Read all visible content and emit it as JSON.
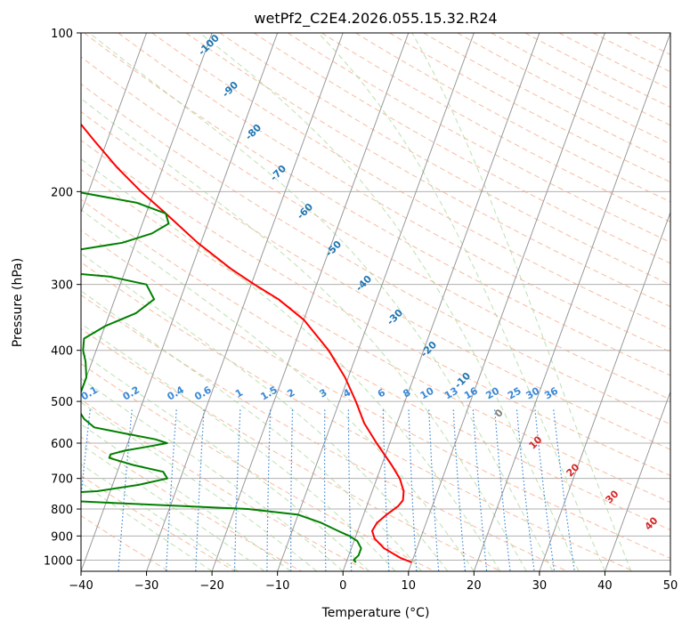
{
  "chart_data": {
    "type": "line",
    "subtype": "skew-t log-p diagram",
    "title": "wetPf2_C2E4.2026.055.15.32.R24",
    "xlabel": "Temperature (°C)",
    "ylabel": "Pressure (hPa)",
    "xlim": [
      -40,
      50
    ],
    "ylim": [
      1050,
      100
    ],
    "y_scale": "log",
    "grid": true,
    "x_ticks": [
      -40,
      -30,
      -20,
      -10,
      0,
      10,
      20,
      30,
      40,
      50
    ],
    "y_ticks": [
      100,
      200,
      300,
      400,
      500,
      600,
      700,
      800,
      900,
      1000
    ],
    "series": [
      {
        "color": "#ff0000",
        "pressure": [
          1010,
          990,
          950,
          910,
          880,
          850,
          820,
          790,
          770,
          740,
          700,
          660,
          600,
          550,
          500,
          450,
          400,
          350,
          320,
          300,
          280,
          250,
          220,
          200,
          180,
          160,
          140,
          130,
          120,
          110,
          100
        ],
        "temperature": [
          10.0,
          8.0,
          5.0,
          3.0,
          2.2,
          2.5,
          3.5,
          4.8,
          5.2,
          4.8,
          3.5,
          1.5,
          -2.0,
          -5.0,
          -7.5,
          -10.5,
          -14.5,
          -20.0,
          -25.0,
          -29.5,
          -34.0,
          -40.5,
          -47.0,
          -52.0,
          -57.0,
          -62.0,
          -67.5,
          -70.5,
          -73.5,
          -76.0,
          -79.5
        ]
      },
      {
        "color": "#008000",
        "pressure": [
          1010,
          1000,
          980,
          950,
          920,
          900,
          880,
          850,
          820,
          800,
          790,
          780,
          770,
          760,
          750,
          740,
          720,
          700,
          680,
          660,
          640,
          630,
          620,
          610,
          600,
          590,
          575,
          560,
          540,
          510,
          500,
          480,
          450,
          420,
          400,
          380,
          360,
          340,
          320,
          300,
          290,
          285,
          280,
          276,
          273,
          270,
          265,
          260,
          250,
          240,
          230,
          220,
          210,
          200,
          195,
          192,
          188,
          180,
          170,
          160,
          150,
          140,
          130,
          120,
          110,
          100
        ],
        "dewpoint": [
          1.5,
          1.0,
          1.5,
          1.5,
          0.5,
          -1.0,
          -3.0,
          -6.0,
          -10.0,
          -18.0,
          -28.0,
          -38.0,
          -48.0,
          -52.0,
          -50.0,
          -42.0,
          -36.0,
          -32.0,
          -33.0,
          -38.0,
          -42.0,
          -42.0,
          -40.0,
          -37.0,
          -34.0,
          -36.0,
          -41.0,
          -46.0,
          -48.0,
          -50.0,
          -51.0,
          -50.0,
          -50.0,
          -51.0,
          -52.0,
          -52.5,
          -50.0,
          -46.0,
          -44.0,
          -46.0,
          -52.0,
          -59.0,
          -67.0,
          -73.0,
          -74.0,
          -73.0,
          -67.0,
          -60.0,
          -52.0,
          -48.0,
          -46.0,
          -47.0,
          -52.0,
          -62.0,
          -71.0,
          -76.0,
          -80.0,
          -80.0,
          -73.0,
          -69.0,
          -74.0,
          -74.0,
          -74.5,
          -79.5,
          -77.5,
          -74.5
        ]
      }
    ],
    "reference_lines": {
      "dry_adiabats": {
        "color": "#f4a582",
        "style": "dashed"
      },
      "moist_adiabats": {
        "color": "#a6d796",
        "style": "dashed"
      },
      "mixing_ratio": {
        "color": "#3a88d6",
        "style": "dotted",
        "labels": [
          "0.1",
          "0.2",
          "0.4",
          "0.6",
          "1",
          "1.5",
          "2",
          "3",
          "4",
          "6",
          "8",
          "10",
          "13",
          "16",
          "20",
          "25",
          "30",
          "36"
        ]
      },
      "isotherms": {
        "color": "#999999",
        "style": "solid"
      }
    },
    "isotherm_labels_blue": [
      "-100",
      "-90",
      "-80",
      "-70",
      "-60",
      "-50",
      "-40",
      "-30",
      "-20",
      "-10"
    ],
    "isotherm_labels_red": [
      "0",
      "10",
      "20",
      "30",
      "40"
    ]
  }
}
